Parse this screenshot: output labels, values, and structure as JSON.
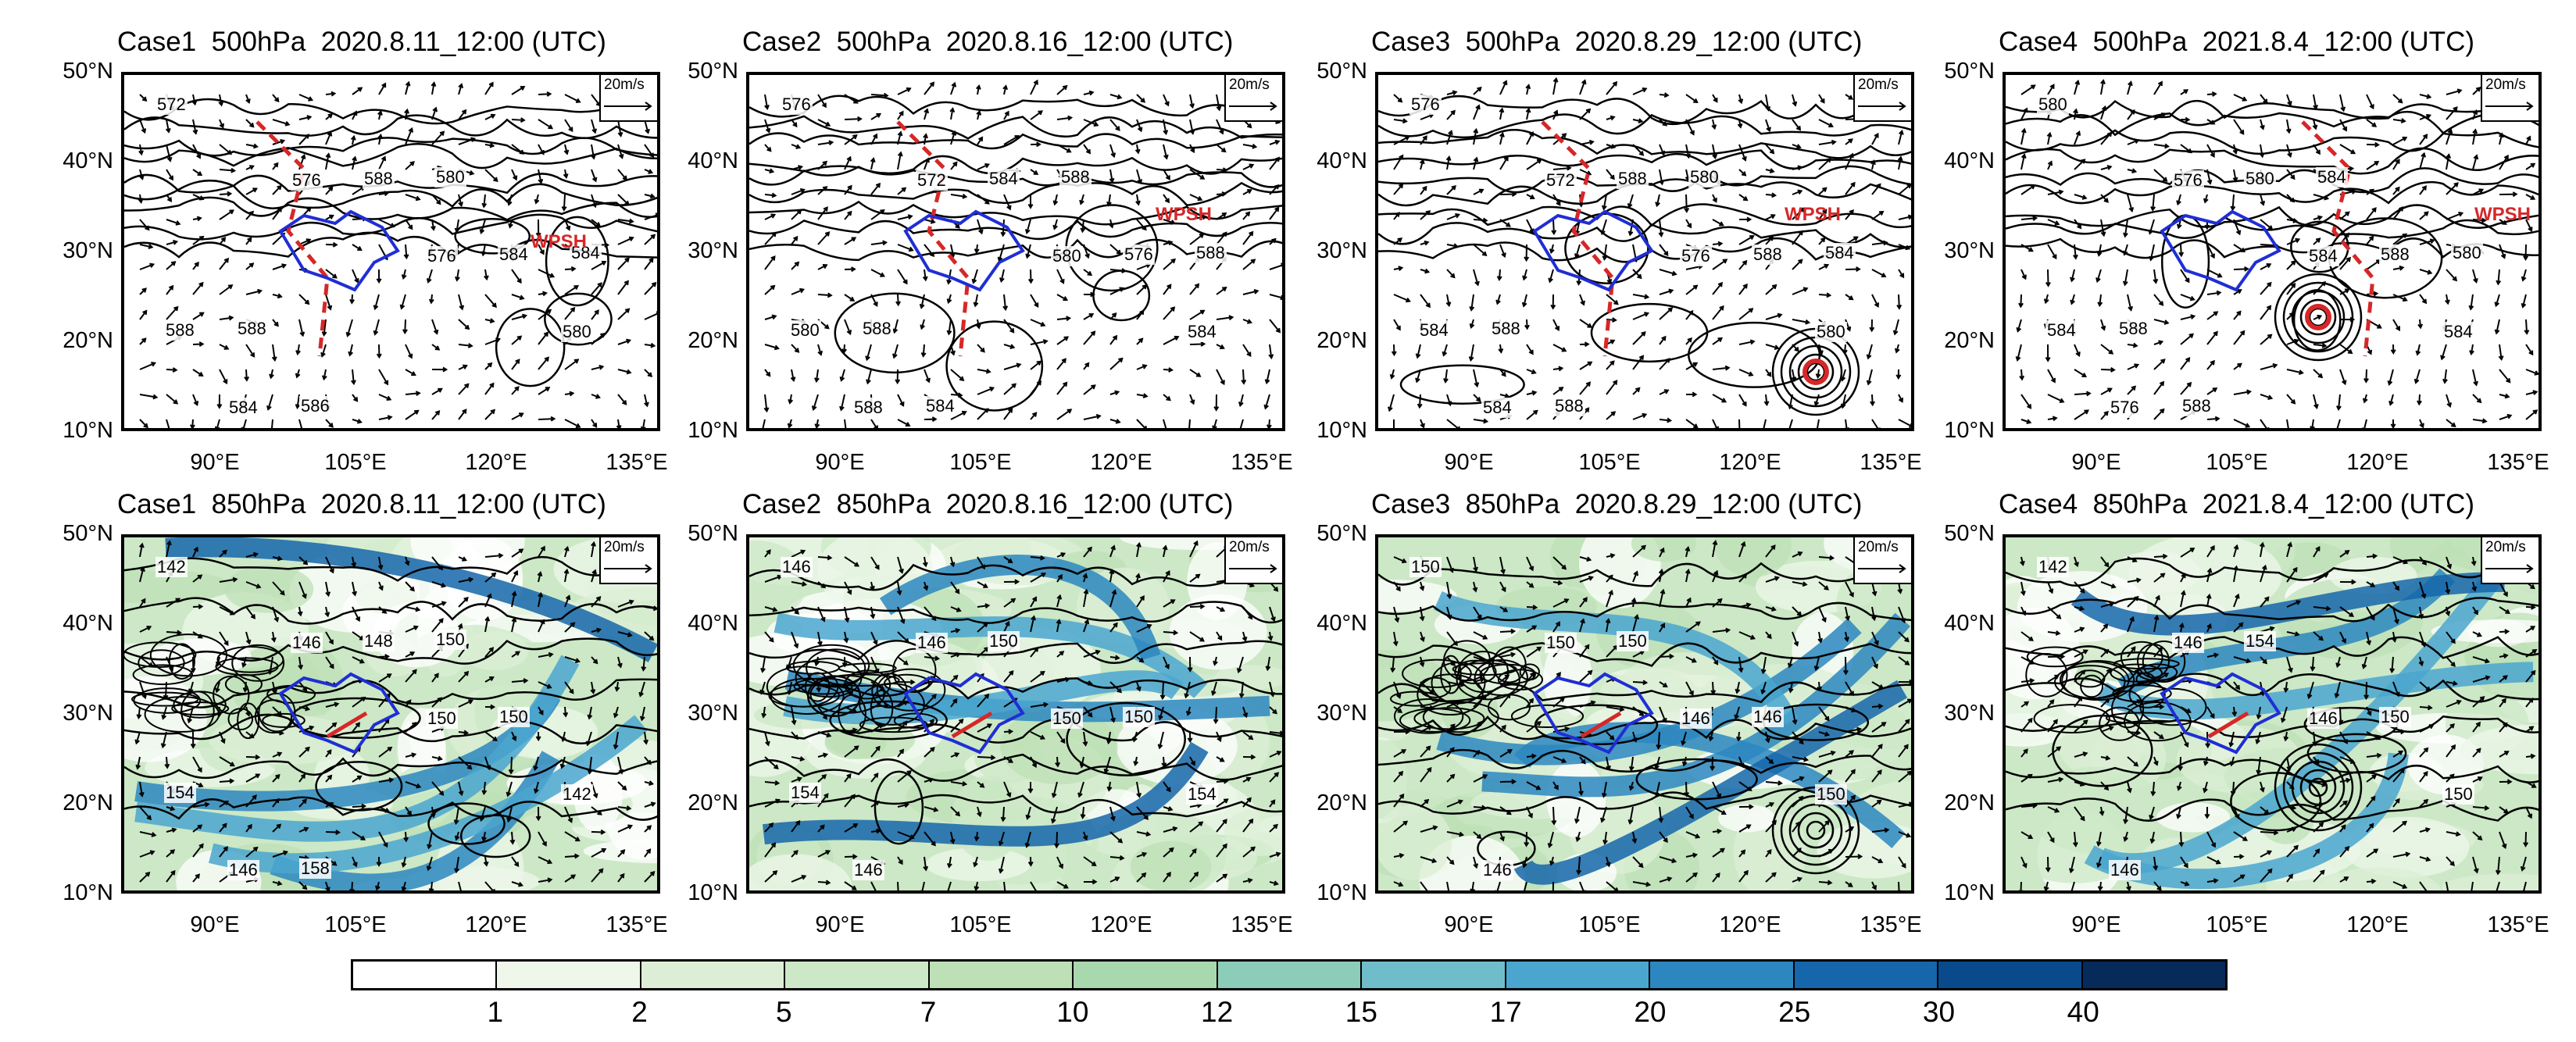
{
  "panels": [
    {
      "title": "Case1  500hPa  2020.8.11_12:00 (UTC)",
      "level": "500",
      "wpsh": "WPSH",
      "typhoon": false,
      "contour_labels": [
        "572",
        "576",
        "576",
        "580",
        "584",
        "588",
        "584",
        "588",
        "586",
        "580",
        "584",
        "588"
      ],
      "ref": "20m/s"
    },
    {
      "title": "Case2  500hPa  2020.8.16_12:00 (UTC)",
      "level": "500",
      "wpsh": "WPSH",
      "typhoon": false,
      "contour_labels": [
        "576",
        "572",
        "580",
        "584",
        "588",
        "584",
        "576",
        "580",
        "584",
        "588",
        "588",
        "588"
      ],
      "ref": "20m/s"
    },
    {
      "title": "Case3  500hPa  2020.8.29_12:00 (UTC)",
      "level": "500",
      "wpsh": "WPSH",
      "typhoon": true,
      "contour_labels": [
        "576",
        "572",
        "576",
        "580",
        "584",
        "588",
        "588",
        "584",
        "588",
        "580",
        "584",
        "588"
      ],
      "ref": "20m/s"
    },
    {
      "title": "Case4  500hPa  2021.8.4_12:00 (UTC)",
      "level": "500",
      "wpsh": "WPSH",
      "typhoon": true,
      "contour_labels": [
        "580",
        "576",
        "584",
        "584",
        "576",
        "580",
        "588",
        "584",
        "588",
        "584",
        "580",
        "588"
      ],
      "ref": "20m/s"
    },
    {
      "title": "Case1  850hPa  2020.8.11_12:00 (UTC)",
      "level": "850",
      "typhoon": false,
      "contour_labels": [
        "142",
        "146",
        "150",
        "142",
        "146",
        "148",
        "150",
        "154",
        "158",
        "150"
      ],
      "ref": "20m/s"
    },
    {
      "title": "Case2  850hPa  2020.8.16_12:00 (UTC)",
      "level": "850",
      "typhoon": false,
      "contour_labels": [
        "146",
        "146",
        "150",
        "154",
        "146",
        "150",
        "150",
        "154"
      ],
      "ref": "20m/s"
    },
    {
      "title": "Case3  850hPa  2020.8.29_12:00 (UTC)",
      "level": "850",
      "typhoon": true,
      "contour_labels": [
        "150",
        "150",
        "146",
        "150",
        "146",
        "150",
        "146"
      ],
      "ref": "20m/s"
    },
    {
      "title": "Case4  850hPa  2021.8.4_12:00 (UTC)",
      "level": "850",
      "typhoon": true,
      "contour_labels": [
        "142",
        "146",
        "146",
        "150",
        "146",
        "154",
        "150"
      ],
      "ref": "20m/s"
    }
  ],
  "y_ticks": [
    "50°N",
    "40°N",
    "30°N",
    "20°N",
    "10°N"
  ],
  "x_ticks": [
    "90°E",
    "105°E",
    "120°E",
    "135°E"
  ],
  "colorbar": {
    "labels": [
      "1",
      "2",
      "5",
      "7",
      "10",
      "12",
      "15",
      "17",
      "20",
      "25",
      "30",
      "40"
    ],
    "colors": [
      "#ffffff",
      "#eef7ea",
      "#dcefd6",
      "#cce8c6",
      "#bde0b6",
      "#a8d8ae",
      "#8ccdb9",
      "#6fbdcb",
      "#4aa6cf",
      "#2c87c0",
      "#1566aa",
      "#084a8c",
      "#062b5a"
    ]
  },
  "colors": {
    "trough": "#d62728",
    "basin": "#1f2ed4",
    "contour": "#000000"
  }
}
